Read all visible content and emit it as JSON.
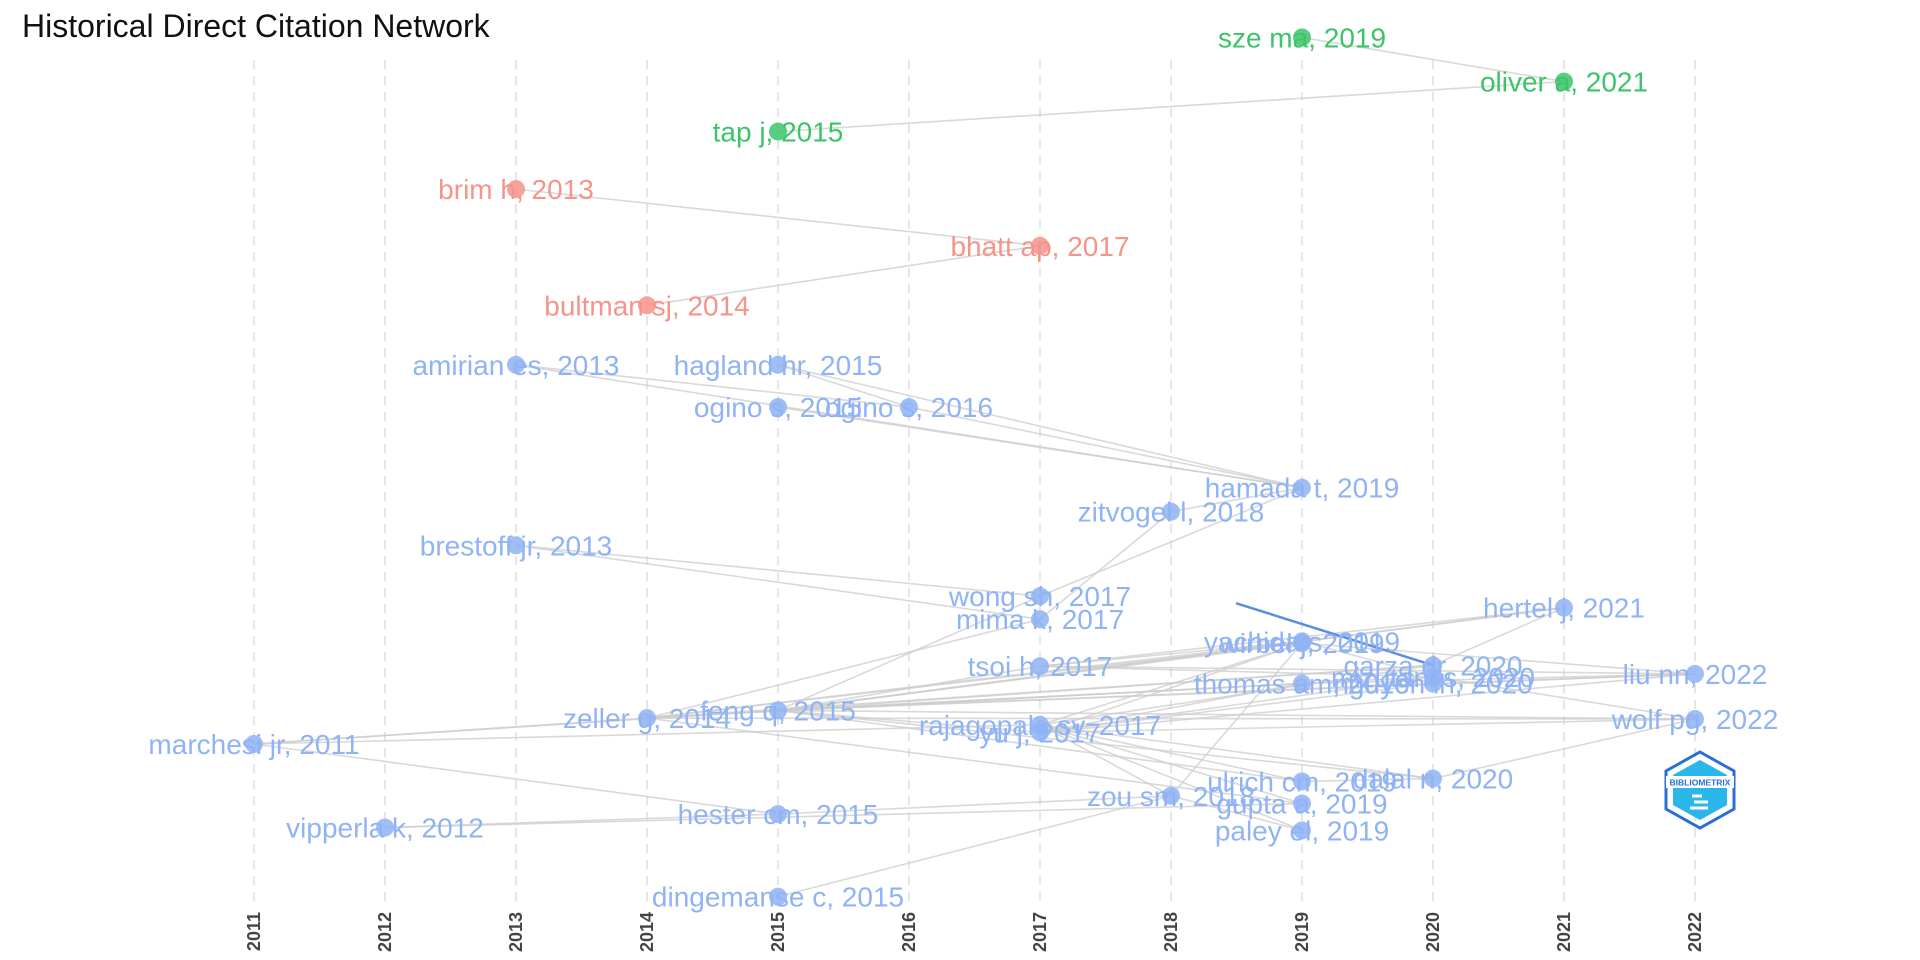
{
  "title": "Historical Direct Citation Network",
  "logo_text": "BIBLIOMETRIX",
  "colors": {
    "cluster_blue": "#8fb3f5",
    "cluster_red": "#f5948a",
    "cluster_green": "#3cc46a",
    "edge": "#cccccc",
    "highlight_edge": "#5b8ee0",
    "grid": "#e6e6e6",
    "logo_dark": "#2a6fd6",
    "logo_light": "#2ab6e8"
  },
  "chart_data": {
    "type": "network",
    "x_axis": {
      "label": "",
      "ticks": [
        2011,
        2012,
        2013,
        2014,
        2015,
        2016,
        2017,
        2018,
        2019,
        2020,
        2021,
        2022
      ],
      "range": [
        2011,
        2022
      ],
      "grid": "dashed vertical"
    },
    "y_axis": {
      "visible": false
    },
    "nodes": [
      {
        "id": "sze_ma_2019",
        "label": "sze ma, 2019",
        "year": 2019,
        "cluster": "green",
        "y": 0.039
      },
      {
        "id": "oliver_a_2021",
        "label": "oliver a, 2021",
        "year": 2021,
        "cluster": "green",
        "y": 0.085
      },
      {
        "id": "tap_j_2015",
        "label": "tap j, 2015",
        "year": 2015,
        "cluster": "green",
        "y": 0.137
      },
      {
        "id": "brim_h_2013",
        "label": "brim h, 2013",
        "year": 2013,
        "cluster": "red",
        "y": 0.197
      },
      {
        "id": "bhatt_ap_2017",
        "label": "bhatt ap, 2017",
        "year": 2017,
        "cluster": "red",
        "y": 0.256
      },
      {
        "id": "bultman_sj_2014",
        "label": "bultman sj, 2014",
        "year": 2014,
        "cluster": "red",
        "y": 0.318
      },
      {
        "id": "amirian_es_2013",
        "label": "amirian es, 2013",
        "year": 2013,
        "cluster": "blue",
        "y": 0.38
      },
      {
        "id": "hagland_hr_2015",
        "label": "hagland hr, 2015",
        "year": 2015,
        "cluster": "blue",
        "y": 0.38
      },
      {
        "id": "ogino_s_2015",
        "label": "ogino s, 2015",
        "year": 2015,
        "cluster": "blue",
        "y": 0.424
      },
      {
        "id": "ogino_s_2016",
        "label": "ogino s, 2016",
        "year": 2016,
        "cluster": "blue",
        "y": 0.424
      },
      {
        "id": "hamada_t_2019",
        "label": "hamada t, 2019",
        "year": 2019,
        "cluster": "blue",
        "y": 0.508
      },
      {
        "id": "zitvogel_l_2018",
        "label": "zitvogel l, 2018",
        "year": 2018,
        "cluster": "blue",
        "y": 0.533
      },
      {
        "id": "brestoff_jr_2013",
        "label": "brestoff jr, 2013",
        "year": 2013,
        "cluster": "blue",
        "y": 0.568
      },
      {
        "id": "wong_sh_2017",
        "label": "wong sh, 2017",
        "year": 2017,
        "cluster": "blue",
        "y": 0.621
      },
      {
        "id": "hertel_j_2021",
        "label": "hertel j, 2021",
        "year": 2021,
        "cluster": "blue",
        "y": 0.633
      },
      {
        "id": "mima_k_2017",
        "label": "mima k, 2017",
        "year": 2017,
        "cluster": "blue",
        "y": 0.645
      },
      {
        "id": "wirbel_j_2019",
        "label": "wirbel j, 2019",
        "year": 2019,
        "cluster": "blue",
        "y": 0.67
      },
      {
        "id": "yachida_s_2019",
        "label": "yachida s, 2019",
        "year": 2019,
        "cluster": "blue",
        "y": 0.668
      },
      {
        "id": "garza_dr_2020",
        "label": "garza dr, 2020",
        "year": 2020,
        "cluster": "blue",
        "y": 0.693
      },
      {
        "id": "nguyen_lh_2020",
        "label": "nguyen lh, 2020",
        "year": 2020,
        "cluster": "blue",
        "y": 0.712
      },
      {
        "id": "tsoi_h_2017",
        "label": "tsoi h, 2017",
        "year": 2017,
        "cluster": "blue",
        "y": 0.694
      },
      {
        "id": "feng_q_2015",
        "label": "feng q, 2015",
        "year": 2015,
        "cluster": "blue",
        "y": 0.74
      },
      {
        "id": "zeller_g_2014",
        "label": "zeller g, 2014",
        "year": 2014,
        "cluster": "blue",
        "y": 0.748
      },
      {
        "id": "thomas_am_2019",
        "label": "thomas am, 2019",
        "year": 2019,
        "cluster": "blue",
        "y": 0.712
      },
      {
        "id": "mizutani_s_2020",
        "label": "mizutani s, 2020",
        "year": 2020,
        "cluster": "blue",
        "y": 0.705
      },
      {
        "id": "liu_nn_2022",
        "label": "liu nn, 2022",
        "year": 2022,
        "cluster": "blue",
        "y": 0.702
      },
      {
        "id": "wolf_pg_2022",
        "label": "wolf pg, 2022",
        "year": 2022,
        "cluster": "blue",
        "y": 0.749
      },
      {
        "id": "rajagopala_sv_2017",
        "label": "rajagopala sv, 2017",
        "year": 2017,
        "cluster": "blue",
        "y": 0.755
      },
      {
        "id": "marchesi_jr_2011",
        "label": "marchesi jr, 2011",
        "year": 2011,
        "cluster": "blue",
        "y": 0.775
      },
      {
        "id": "yu_j_2017",
        "label": "yu j, 2017",
        "year": 2017,
        "cluster": "blue",
        "y": 0.763
      },
      {
        "id": "ulrich_cm_2019",
        "label": "ulrich cm, 2019",
        "year": 2019,
        "cluster": "blue",
        "y": 0.814
      },
      {
        "id": "dalal_n_2020",
        "label": "dalal n, 2020",
        "year": 2020,
        "cluster": "blue",
        "y": 0.811
      },
      {
        "id": "zou_sm_2018",
        "label": "zou sm, 2018",
        "year": 2018,
        "cluster": "blue",
        "y": 0.829
      },
      {
        "id": "gupta_a_2019",
        "label": "gupta a, 2019",
        "year": 2019,
        "cluster": "blue",
        "y": 0.837
      },
      {
        "id": "hester_cm_2015",
        "label": "hester cm, 2015",
        "year": 2015,
        "cluster": "blue",
        "y": 0.848
      },
      {
        "id": "vipperla_k_2012",
        "label": "vipperla k, 2012",
        "year": 2012,
        "cluster": "blue",
        "y": 0.862
      },
      {
        "id": "paley_el_2019",
        "label": "paley el, 2019",
        "year": 2019,
        "cluster": "blue",
        "y": 0.865
      },
      {
        "id": "dingemanse_c_2015",
        "label": "dingemanse c, 2015",
        "year": 2015,
        "cluster": "blue",
        "y": 0.934
      }
    ],
    "edges": [
      [
        "tap_j_2015",
        "oliver_a_2021"
      ],
      [
        "sze_ma_2019",
        "oliver_a_2021"
      ],
      [
        "brim_h_2013",
        "bhatt_ap_2017"
      ],
      [
        "bultman_sj_2014",
        "bhatt_ap_2017"
      ],
      [
        "amirian_es_2013",
        "hamada_t_2019"
      ],
      [
        "amirian_es_2013",
        "ogino_s_2016"
      ],
      [
        "hagland_hr_2015",
        "hamada_t_2019"
      ],
      [
        "ogino_s_2015",
        "hamada_t_2019"
      ],
      [
        "ogino_s_2016",
        "hamada_t_2019"
      ],
      [
        "hagland_hr_2015",
        "ogino_s_2016"
      ],
      [
        "zitvogel_l_2018",
        "hamada_t_2019"
      ],
      [
        "wong_sh_2017",
        "hamada_t_2019"
      ],
      [
        "brestoff_jr_2013",
        "mima_k_2017"
      ],
      [
        "brestoff_jr_2013",
        "wong_sh_2017"
      ],
      [
        "mima_k_2017",
        "zitvogel_l_2018"
      ],
      [
        "marchesi_jr_2011",
        "zeller_g_2014"
      ],
      [
        "marchesi_jr_2011",
        "feng_q_2015"
      ],
      [
        "marchesi_jr_2011",
        "rajagopala_sv_2017"
      ],
      [
        "marchesi_jr_2011",
        "hester_cm_2015"
      ],
      [
        "zeller_g_2014",
        "feng_q_2015"
      ],
      [
        "zeller_g_2014",
        "wirbel_j_2019"
      ],
      [
        "zeller_g_2014",
        "thomas_am_2019"
      ],
      [
        "zeller_g_2014",
        "wolf_pg_2022"
      ],
      [
        "zeller_g_2014",
        "gupta_a_2019"
      ],
      [
        "zeller_g_2014",
        "garza_dr_2020"
      ],
      [
        "zeller_g_2014",
        "yachida_s_2019"
      ],
      [
        "zeller_g_2014",
        "mima_k_2017"
      ],
      [
        "feng_q_2015",
        "tsoi_h_2017"
      ],
      [
        "feng_q_2015",
        "yachida_s_2019"
      ],
      [
        "feng_q_2015",
        "wirbel_j_2019"
      ],
      [
        "feng_q_2015",
        "thomas_am_2019"
      ],
      [
        "feng_q_2015",
        "garza_dr_2020"
      ],
      [
        "feng_q_2015",
        "nguyen_lh_2020"
      ],
      [
        "feng_q_2015",
        "mizutani_s_2020"
      ],
      [
        "feng_q_2015",
        "liu_nn_2022"
      ],
      [
        "feng_q_2015",
        "wolf_pg_2022"
      ],
      [
        "feng_q_2015",
        "dalal_n_2020"
      ],
      [
        "feng_q_2015",
        "hertel_j_2021"
      ],
      [
        "feng_q_2015",
        "ulrich_cm_2019"
      ],
      [
        "feng_q_2015",
        "yu_j_2017"
      ],
      [
        "feng_q_2015",
        "wong_sh_2017"
      ],
      [
        "rajagopala_sv_2017",
        "wirbel_j_2019"
      ],
      [
        "rajagopala_sv_2017",
        "garza_dr_2020"
      ],
      [
        "rajagopala_sv_2017",
        "ulrich_cm_2019"
      ],
      [
        "rajagopala_sv_2017",
        "gupta_a_2019"
      ],
      [
        "rajagopala_sv_2017",
        "paley_el_2019"
      ],
      [
        "rajagopala_sv_2017",
        "dalal_n_2020"
      ],
      [
        "rajagopala_sv_2017",
        "zou_sm_2018"
      ],
      [
        "tsoi_h_2017",
        "yachida_s_2019"
      ],
      [
        "tsoi_h_2017",
        "mizutani_s_2020"
      ],
      [
        "tsoi_h_2017",
        "hertel_j_2021"
      ],
      [
        "tsoi_h_2017",
        "liu_nn_2022"
      ],
      [
        "yu_j_2017",
        "wirbel_j_2019"
      ],
      [
        "yu_j_2017",
        "thomas_am_2019"
      ],
      [
        "yu_j_2017",
        "mizutani_s_2020"
      ],
      [
        "yu_j_2017",
        "liu_nn_2022"
      ],
      [
        "yu_j_2017",
        "wolf_pg_2022"
      ],
      [
        "yu_j_2017",
        "nguyen_lh_2020"
      ],
      [
        "wirbel_j_2019",
        "liu_nn_2022"
      ],
      [
        "thomas_am_2019",
        "liu_nn_2022"
      ],
      [
        "yachida_s_2019",
        "hertel_j_2021"
      ],
      [
        "yachida_s_2019",
        "mizutani_s_2020"
      ],
      [
        "garza_dr_2020",
        "hertel_j_2021"
      ],
      [
        "nguyen_lh_2020",
        "liu_nn_2022"
      ],
      [
        "mizutani_s_2020",
        "wolf_pg_2022"
      ],
      [
        "dalal_n_2020",
        "wolf_pg_2022"
      ],
      [
        "hester_cm_2015",
        "zou_sm_2018"
      ],
      [
        "vipperla_k_2012",
        "hester_cm_2015"
      ],
      [
        "vipperla_k_2012",
        "gupta_a_2019"
      ],
      [
        "dingemanse_c_2015",
        "zou_sm_2018"
      ],
      [
        "zou_sm_2018",
        "wirbel_j_2019"
      ],
      [
        "zou_sm_2018",
        "paley_el_2019"
      ],
      [
        "ulrich_cm_2019",
        "dalal_n_2020"
      ]
    ],
    "highlight_edges": [
      [
        "wirbel_j_2019",
        "garza_dr_2020"
      ]
    ]
  }
}
